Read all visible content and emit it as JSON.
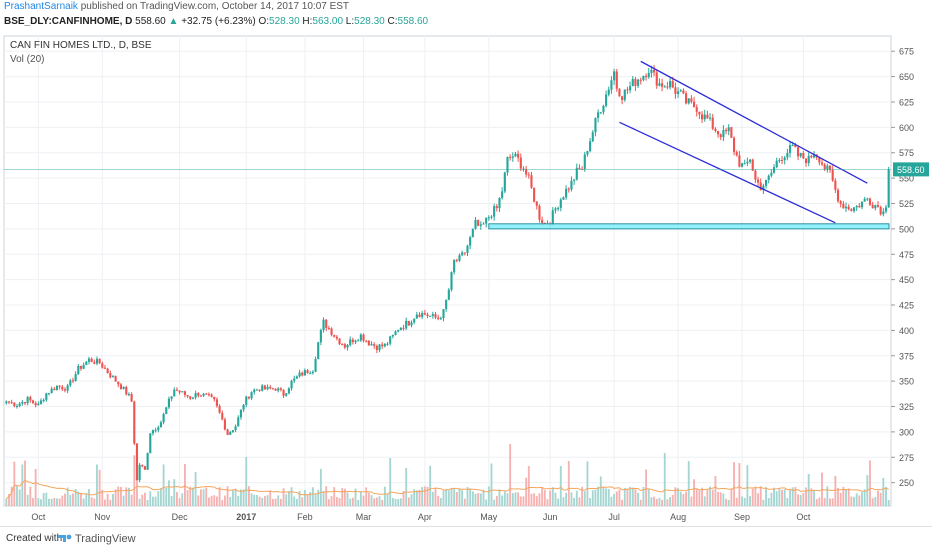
{
  "header": {
    "author": "PrashantSarnaik",
    "published": "published on TradingView.com, October 14, 2017 10:07 EST",
    "symbol": "BSE_DLY:CANFINHOME, D",
    "last": "558.60",
    "change": "+32.75 (+6.23%)",
    "o_label": "O:",
    "o_value": "528.30",
    "h_label": "H:",
    "h_value": "563.00",
    "l_label": "L:",
    "l_value": "528.30",
    "c_label": "C:",
    "c_value": "558.60"
  },
  "footer": {
    "created": "Created with",
    "brand": "TradingView"
  },
  "colors": {
    "up": "#26a69a",
    "down": "#ef5350",
    "volume_up": "#a5d6d1",
    "volume_down": "#f5b2b1",
    "channel": "#2d2dd9",
    "support_fill": "#80f0f8",
    "support_stroke": "#2a8fa6",
    "price_line": "#26a69a",
    "ma": "#f5a65b",
    "grid": "#eef0f3"
  },
  "chart_data": {
    "type": "candlestick",
    "title": "CAN FIN HOMES LTD., D, BSE",
    "indicator": "Vol (20)",
    "last_price": 558.6,
    "y_ticks": [
      250,
      275,
      300,
      325,
      350,
      375,
      400,
      425,
      450,
      475,
      500,
      525,
      550,
      575,
      600,
      625,
      650,
      675
    ],
    "x_labels": [
      "Oct",
      "Nov",
      "Dec",
      "2017",
      "Feb",
      "Mar",
      "Apr",
      "May",
      "Jun",
      "Jul",
      "Aug",
      "Sep",
      "Oct"
    ],
    "ylim": [
      227,
      690
    ],
    "price_path": [
      [
        0,
        330
      ],
      [
        4,
        327
      ],
      [
        8,
        332
      ],
      [
        12,
        326
      ],
      [
        15,
        338
      ],
      [
        19,
        345
      ],
      [
        23,
        343
      ],
      [
        27,
        362
      ],
      [
        31,
        371
      ],
      [
        35,
        368
      ],
      [
        39,
        356
      ],
      [
        43,
        345
      ],
      [
        46,
        335
      ],
      [
        47,
        330
      ],
      [
        48,
        290
      ],
      [
        49,
        252
      ],
      [
        50,
        268
      ],
      [
        52,
        262
      ],
      [
        54,
        300
      ],
      [
        56,
        304
      ],
      [
        58,
        310
      ],
      [
        61,
        330
      ],
      [
        63,
        342
      ],
      [
        66,
        338
      ],
      [
        69,
        334
      ],
      [
        72,
        338
      ],
      [
        74,
        336
      ],
      [
        76,
        334
      ],
      [
        78,
        330
      ],
      [
        81,
        312
      ],
      [
        83,
        298
      ],
      [
        86,
        306
      ],
      [
        89,
        328
      ],
      [
        92,
        340
      ],
      [
        95,
        343
      ],
      [
        98,
        342
      ],
      [
        101,
        343
      ],
      [
        104,
        337
      ],
      [
        107,
        349
      ],
      [
        110,
        356
      ],
      [
        113,
        360
      ],
      [
        115,
        362
      ],
      [
        117,
        388
      ],
      [
        119,
        408
      ],
      [
        121,
        402
      ],
      [
        124,
        392
      ],
      [
        127,
        385
      ],
      [
        130,
        391
      ],
      [
        133,
        395
      ],
      [
        136,
        388
      ],
      [
        139,
        384
      ],
      [
        142,
        385
      ],
      [
        145,
        394
      ],
      [
        147,
        402
      ],
      [
        149,
        405
      ],
      [
        151,
        408
      ],
      [
        154,
        417
      ],
      [
        157,
        416
      ],
      [
        160,
        413
      ],
      [
        162,
        412
      ],
      [
        164,
        418
      ],
      [
        166,
        440
      ],
      [
        168,
        468
      ],
      [
        170,
        470
      ],
      [
        172,
        477
      ],
      [
        174,
        490
      ],
      [
        176,
        505
      ],
      [
        178,
        500
      ],
      [
        180,
        508
      ],
      [
        182,
        516
      ],
      [
        184,
        520
      ],
      [
        186,
        538
      ],
      [
        188,
        568
      ],
      [
        190,
        572
      ],
      [
        192,
        568
      ],
      [
        194,
        560
      ],
      [
        196,
        548
      ],
      [
        198,
        530
      ],
      [
        200,
        512
      ],
      [
        202,
        505
      ],
      [
        204,
        508
      ],
      [
        206,
        520
      ],
      [
        208,
        530
      ],
      [
        210,
        538
      ],
      [
        212,
        545
      ],
      [
        214,
        556
      ],
      [
        216,
        560
      ],
      [
        218,
        580
      ],
      [
        220,
        596
      ],
      [
        222,
        614
      ],
      [
        224,
        625
      ],
      [
        226,
        640
      ],
      [
        228,
        655
      ],
      [
        229,
        640
      ],
      [
        231,
        632
      ],
      [
        233,
        637
      ],
      [
        235,
        643
      ],
      [
        237,
        648
      ],
      [
        239,
        652
      ],
      [
        241,
        658
      ],
      [
        243,
        650
      ],
      [
        245,
        643
      ],
      [
        247,
        642
      ],
      [
        249,
        643
      ],
      [
        251,
        636
      ],
      [
        253,
        632
      ],
      [
        255,
        625
      ],
      [
        257,
        622
      ],
      [
        259,
        620
      ],
      [
        261,
        612
      ],
      [
        263,
        608
      ],
      [
        265,
        601
      ],
      [
        267,
        595
      ],
      [
        269,
        593
      ],
      [
        271,
        597
      ],
      [
        273,
        578
      ],
      [
        275,
        565
      ],
      [
        277,
        560
      ],
      [
        279,
        570
      ],
      [
        281,
        548
      ],
      [
        283,
        542
      ],
      [
        285,
        545
      ],
      [
        287,
        555
      ],
      [
        289,
        566
      ],
      [
        291,
        572
      ],
      [
        293,
        576
      ],
      [
        295,
        580
      ],
      [
        297,
        572
      ],
      [
        299,
        570
      ],
      [
        301,
        568
      ],
      [
        303,
        576
      ],
      [
        305,
        570
      ],
      [
        307,
        560
      ],
      [
        309,
        555
      ],
      [
        311,
        538
      ],
      [
        313,
        525
      ],
      [
        315,
        522
      ],
      [
        317,
        520
      ],
      [
        319,
        522
      ],
      [
        321,
        526
      ],
      [
        323,
        530
      ],
      [
        325,
        525
      ],
      [
        327,
        522
      ],
      [
        329,
        516
      ],
      [
        330,
        525
      ],
      [
        331,
        558.6
      ]
    ],
    "channel_upper": [
      [
        238,
        665
      ],
      [
        323,
        545
      ]
    ],
    "channel_lower": [
      [
        230,
        605
      ],
      [
        311,
        506
      ]
    ],
    "support_zone": [
      500,
      505
    ]
  }
}
